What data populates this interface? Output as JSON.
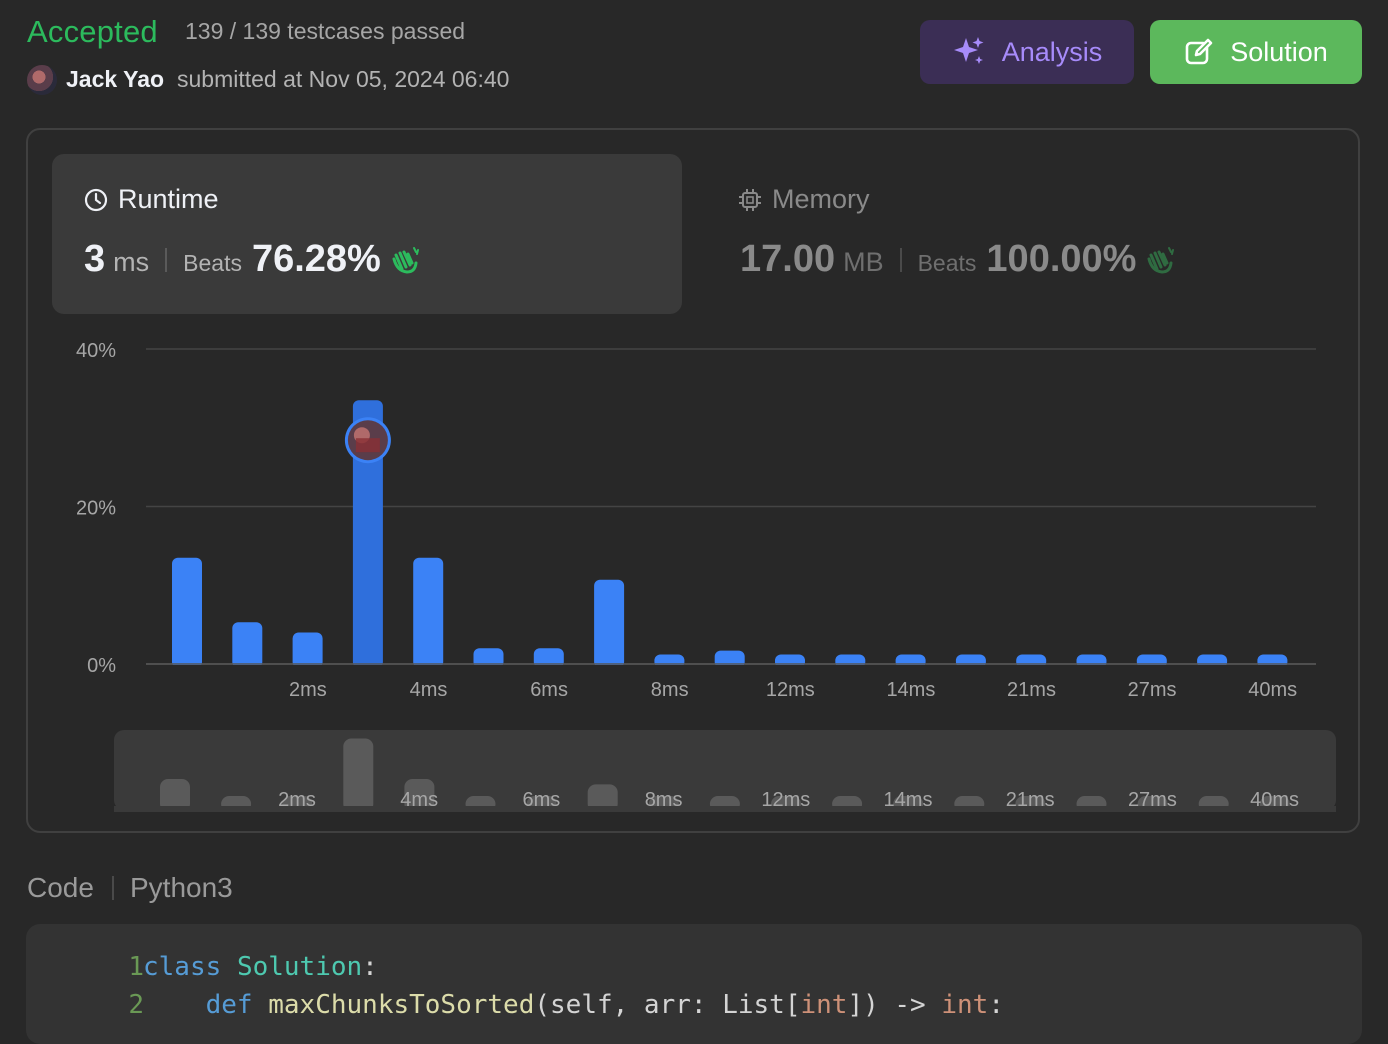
{
  "header": {
    "status": "Accepted",
    "testcases": "139 / 139 testcases passed",
    "user_name": "Jack Yao",
    "submitted_text": "submitted at Nov 05, 2024 06:40",
    "analysis_label": "Analysis",
    "solution_label": "Solution"
  },
  "runtime": {
    "title": "Runtime",
    "value": "3",
    "unit": "ms",
    "beats_label": "Beats",
    "beats_value": "76.28%"
  },
  "memory": {
    "title": "Memory",
    "value": "17.00",
    "unit": "MB",
    "beats_label": "Beats",
    "beats_value": "100.00%"
  },
  "chart_data": {
    "type": "bar",
    "y_ticks": [
      "40%",
      "20%",
      "0%"
    ],
    "ylim": [
      0,
      40
    ],
    "values": [
      13.5,
      5.3,
      4,
      33.5,
      13.5,
      2,
      2,
      10.7,
      1.2,
      1.7,
      1.2,
      1.2,
      1.2,
      1.2,
      1.2,
      1.2,
      1.2,
      1.2,
      1.2
    ],
    "x_tick_labels": [
      "2ms",
      "4ms",
      "6ms",
      "8ms",
      "12ms",
      "14ms",
      "21ms",
      "27ms",
      "40ms"
    ],
    "x_tick_indices": [
      2,
      4,
      6,
      8,
      10,
      12,
      14,
      16,
      18
    ],
    "highlight_index": 3,
    "overview_values": [
      3,
      1,
      0,
      7.5,
      3,
      1,
      0,
      2.4,
      0,
      1,
      0,
      1,
      0,
      1,
      0,
      1,
      0,
      1,
      0
    ],
    "overview_labels": [
      "2ms",
      "4ms",
      "6ms",
      "8ms",
      "12ms",
      "14ms",
      "21ms",
      "27ms",
      "40ms"
    ],
    "bar_color": "#3b82f6",
    "highlight_color": "#2f6fdc",
    "overview_bar_color": "#5a5a5a"
  },
  "code": {
    "label": "Code",
    "language": "Python3",
    "lines": [
      {
        "num": "1",
        "tokens": [
          [
            "kw",
            "class"
          ],
          [
            "plain",
            " "
          ],
          [
            "cls",
            "Solution"
          ],
          [
            "plain",
            ":"
          ]
        ]
      },
      {
        "num": "2",
        "tokens": [
          [
            "plain",
            "    "
          ],
          [
            "kw",
            "def"
          ],
          [
            "plain",
            " "
          ],
          [
            "fn",
            "maxChunksToSorted"
          ],
          [
            "plain",
            "(self, arr: List["
          ],
          [
            "type",
            "int"
          ],
          [
            "plain",
            "]) -> "
          ],
          [
            "type",
            "int"
          ],
          [
            "plain",
            ":"
          ]
        ]
      }
    ]
  }
}
